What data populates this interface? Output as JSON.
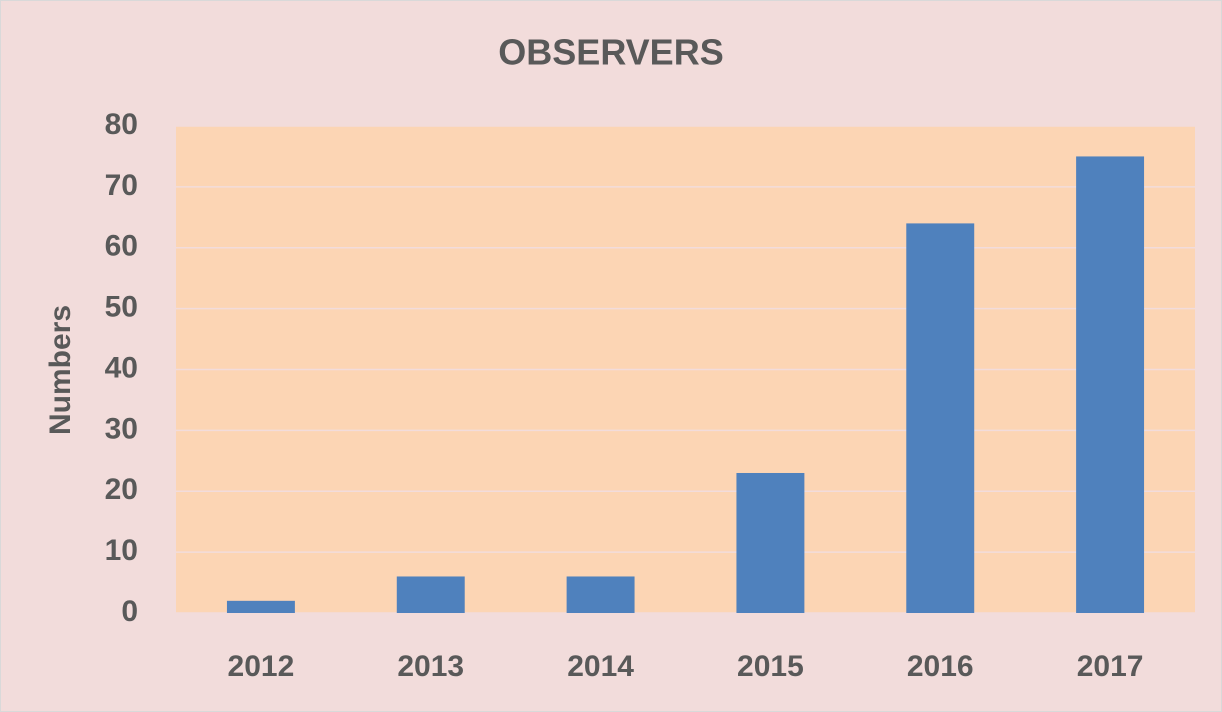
{
  "chart_data": {
    "type": "bar",
    "title": "OBSERVERS",
    "y_label": "Numbers",
    "categories": [
      "2012",
      "2013",
      "2014",
      "2015",
      "2016",
      "2017"
    ],
    "values": [
      2,
      6,
      6,
      23,
      64,
      75
    ],
    "color": "#4f81bd",
    "ylim": [
      0,
      80
    ],
    "yticks": [
      0,
      10,
      20,
      30,
      40,
      50,
      60,
      70,
      80
    ],
    "grid": true
  }
}
